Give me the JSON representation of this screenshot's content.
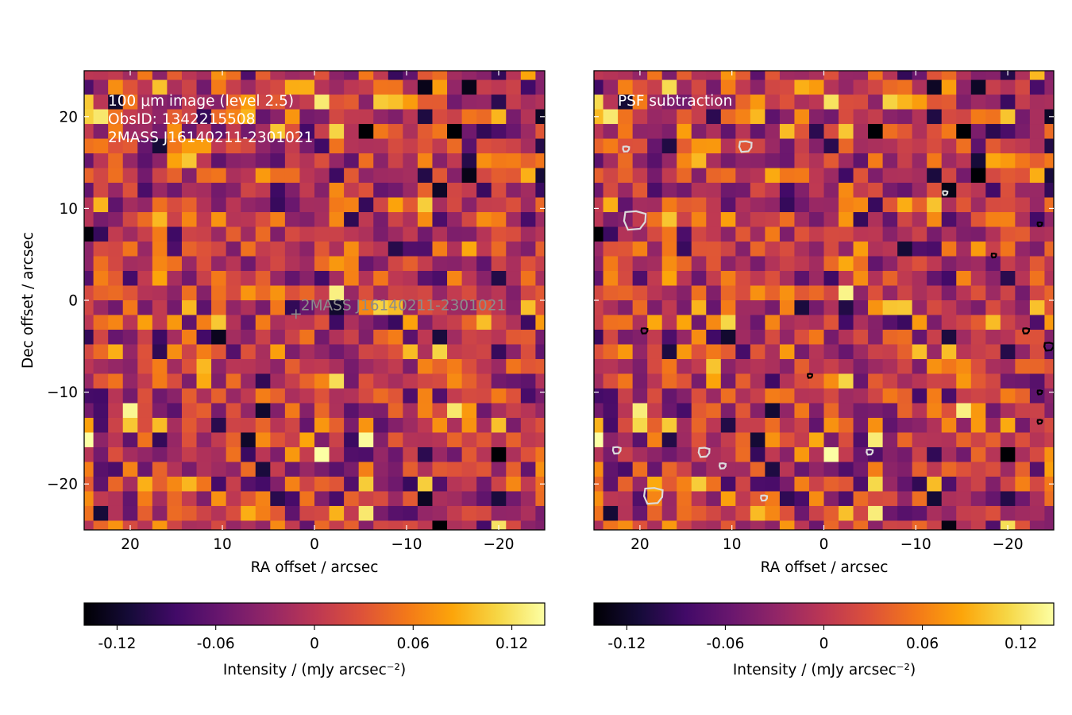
{
  "chart_data": [
    {
      "type": "heatmap",
      "panel": "left",
      "annotation_lines": [
        "100 μm image (level 2.5)",
        "ObsID: 1342215508",
        "2MASS J16140211-2301021"
      ],
      "source_marker": {
        "label": "2MASS J16140211-2301021",
        "ra": 2.0,
        "dec": -1.5
      },
      "xlabel": "RA offset / arcsec",
      "ylabel": "Dec offset / arcsec",
      "xlim": [
        25,
        -25
      ],
      "ylim": [
        -25,
        25
      ],
      "xticks": [
        20,
        10,
        0,
        -10,
        -20
      ],
      "xtick_labels": [
        "20",
        "10",
        "0",
        "−10",
        "−20"
      ],
      "yticks": [
        20,
        10,
        0,
        -10,
        -20
      ],
      "ytick_labels": [
        "20",
        "10",
        "0",
        "−10",
        "−20"
      ],
      "grid": {
        "nx": 32,
        "ny": 32,
        "pixel_arcsec": 1.6
      },
      "colormap": "inferno",
      "vmin": -0.14,
      "vmax": 0.14,
      "colorbar": {
        "ticks": [
          -0.12,
          -0.06,
          0,
          0.06,
          0.12
        ],
        "tick_labels": [
          "-0.12",
          "-0.06",
          "0",
          "0.06",
          "0.12"
        ],
        "label": "Intensity / (mJy arcsec⁻²)"
      }
    },
    {
      "type": "heatmap",
      "panel": "right",
      "annotation_lines": [
        "PSF subtraction"
      ],
      "xlabel": "RA offset / arcsec",
      "xlim": [
        25,
        -25
      ],
      "ylim": [
        -25,
        25
      ],
      "xticks": [
        20,
        10,
        0,
        -10,
        -20
      ],
      "xtick_labels": [
        "20",
        "10",
        "0",
        "−10",
        "−20"
      ],
      "grid": {
        "nx": 32,
        "ny": 32,
        "pixel_arcsec": 1.6
      },
      "colormap": "inferno",
      "vmin": -0.14,
      "vmax": 0.14,
      "contours": [
        {
          "color": "#dcdcdc",
          "ra": 21.5,
          "dec": 16.5,
          "r": 0.4
        },
        {
          "color": "#dcdcdc",
          "ra": 8.5,
          "dec": 16.8,
          "r": 0.8
        },
        {
          "color": "#dcdcdc",
          "ra": 20.5,
          "dec": 8.8,
          "r": 1.4
        },
        {
          "color": "#dcdcdc",
          "ra": 13.0,
          "dec": -16.5,
          "r": 0.7
        },
        {
          "color": "#dcdcdc",
          "ra": 22.5,
          "dec": -16.3,
          "r": 0.5
        },
        {
          "color": "#dcdcdc",
          "ra": 11.0,
          "dec": -18.0,
          "r": 0.4
        },
        {
          "color": "#dcdcdc",
          "ra": 18.5,
          "dec": -21.2,
          "r": 1.2
        },
        {
          "color": "#dcdcdc",
          "ra": 6.5,
          "dec": -21.5,
          "r": 0.4
        },
        {
          "color": "#dcdcdc",
          "ra": -5.0,
          "dec": -16.5,
          "r": 0.4
        },
        {
          "color": "#dcdcdc",
          "ra": -13.2,
          "dec": 11.7,
          "r": 0.3
        },
        {
          "color": "#000000",
          "ra": 19.5,
          "dec": -3.3,
          "r": 0.4
        },
        {
          "color": "#000000",
          "ra": 1.5,
          "dec": -8.2,
          "r": 0.3
        },
        {
          "color": "#000000",
          "ra": -18.5,
          "dec": 4.9,
          "r": 0.3
        },
        {
          "color": "#000000",
          "ra": -22.0,
          "dec": -3.3,
          "r": 0.4
        },
        {
          "color": "#000000",
          "ra": -23.5,
          "dec": 8.3,
          "r": 0.3
        },
        {
          "color": "#000000",
          "ra": -23.5,
          "dec": -10.0,
          "r": 0.3
        },
        {
          "color": "#000000",
          "ra": -23.5,
          "dec": -13.2,
          "r": 0.3
        },
        {
          "color": "#000000",
          "ra": -24.5,
          "dec": -5.0,
          "r": 0.6
        }
      ],
      "colorbar": {
        "ticks": [
          -0.12,
          -0.06,
          0,
          0.06,
          0.12
        ],
        "tick_labels": [
          "-0.12",
          "-0.06",
          "0",
          "0.06",
          "0.12"
        ],
        "label": "Intensity / (mJy arcsec⁻²)"
      }
    }
  ]
}
